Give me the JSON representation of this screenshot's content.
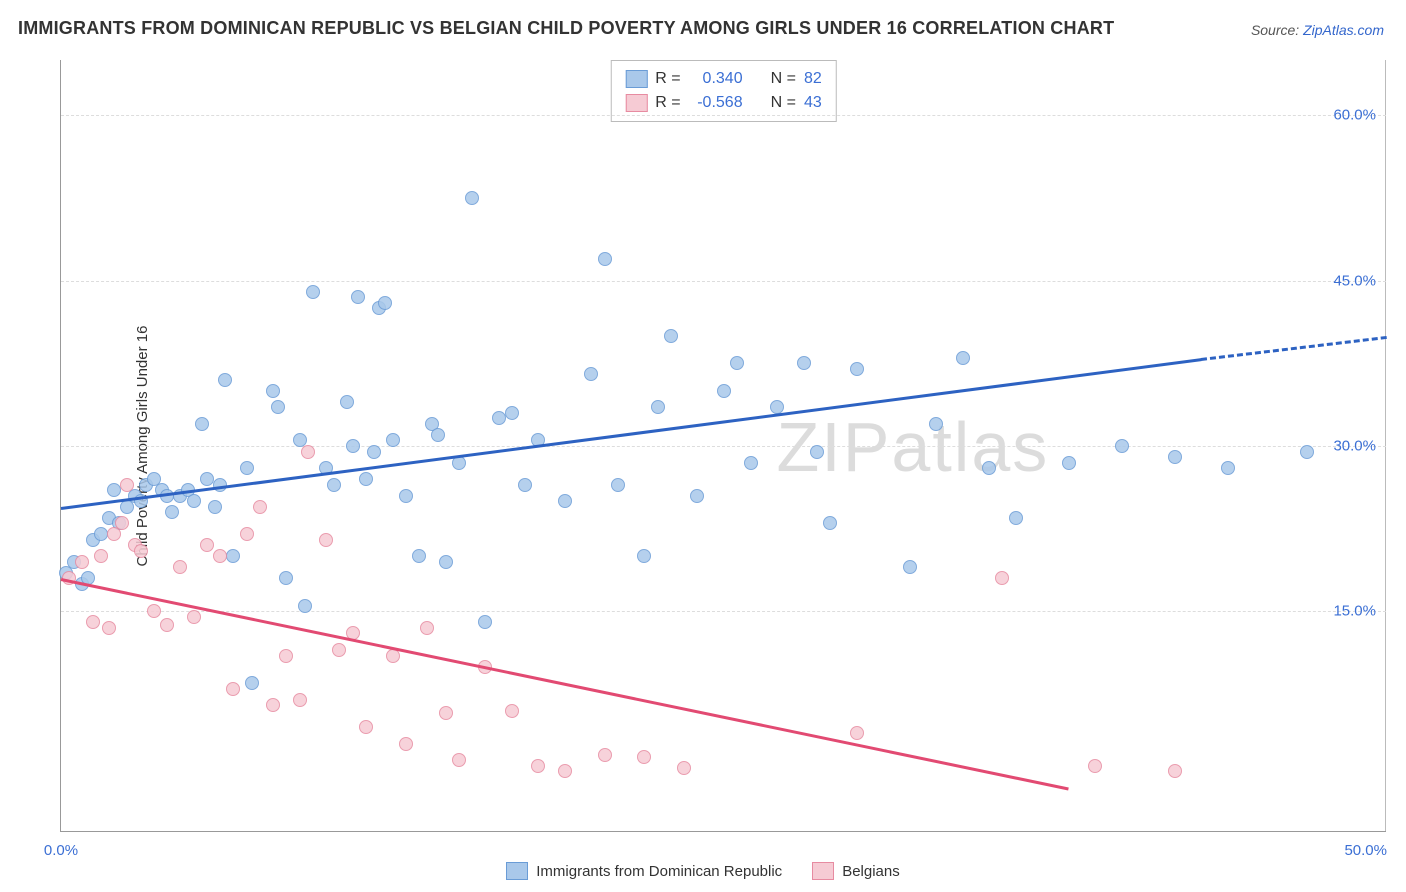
{
  "title": "IMMIGRANTS FROM DOMINICAN REPUBLIC VS BELGIAN CHILD POVERTY AMONG GIRLS UNDER 16 CORRELATION CHART",
  "source_prefix": "Source: ",
  "source_link": "ZipAtlas.com",
  "y_axis_label": "Child Poverty Among Girls Under 16",
  "watermark": "ZIPatlas",
  "chart": {
    "type": "scatter",
    "x_min": 0,
    "x_max": 50,
    "y_min": -5,
    "y_max": 65,
    "y_ticks": [
      15,
      30,
      45,
      60
    ],
    "y_tick_labels": [
      "15.0%",
      "30.0%",
      "45.0%",
      "60.0%"
    ],
    "x_ticks": [
      0,
      50
    ],
    "x_tick_labels": [
      "0.0%",
      "50.0%"
    ],
    "background_color": "#ffffff",
    "grid_color": "#dddddd",
    "series": [
      {
        "name": "Immigrants from Dominican Republic",
        "fill_color": "#a9c8ea",
        "stroke_color": "#6a9cd6",
        "r_value": "0.340",
        "n_value": "82",
        "trend": {
          "color": "#2d62c2",
          "x1": 0,
          "y1": 24.5,
          "x2": 43,
          "y2": 38.0,
          "dash_x2": 50,
          "dash_y2": 40.0
        },
        "points": [
          [
            0.2,
            18.5
          ],
          [
            0.5,
            19.5
          ],
          [
            0.8,
            17.5
          ],
          [
            1.0,
            18.0
          ],
          [
            1.2,
            21.5
          ],
          [
            1.5,
            22.0
          ],
          [
            1.8,
            23.5
          ],
          [
            2.0,
            26.0
          ],
          [
            2.2,
            23.0
          ],
          [
            2.5,
            24.5
          ],
          [
            2.8,
            25.5
          ],
          [
            3.0,
            25.0
          ],
          [
            3.2,
            26.5
          ],
          [
            3.5,
            27.0
          ],
          [
            3.8,
            26.0
          ],
          [
            4.0,
            25.5
          ],
          [
            4.2,
            24.0
          ],
          [
            4.5,
            25.5
          ],
          [
            4.8,
            26.0
          ],
          [
            5.0,
            25.0
          ],
          [
            5.3,
            32.0
          ],
          [
            5.5,
            27.0
          ],
          [
            5.8,
            24.5
          ],
          [
            6.0,
            26.5
          ],
          [
            6.2,
            36.0
          ],
          [
            6.5,
            20.0
          ],
          [
            7.0,
            28.0
          ],
          [
            7.2,
            8.5
          ],
          [
            8.0,
            35.0
          ],
          [
            8.2,
            33.5
          ],
          [
            8.5,
            18.0
          ],
          [
            9.0,
            30.5
          ],
          [
            9.2,
            15.5
          ],
          [
            9.5,
            44.0
          ],
          [
            10.0,
            28.0
          ],
          [
            10.3,
            26.5
          ],
          [
            10.8,
            34.0
          ],
          [
            11.0,
            30.0
          ],
          [
            11.2,
            43.5
          ],
          [
            11.5,
            27.0
          ],
          [
            11.8,
            29.5
          ],
          [
            12.0,
            42.5
          ],
          [
            12.2,
            43.0
          ],
          [
            12.5,
            30.5
          ],
          [
            13.0,
            25.5
          ],
          [
            13.5,
            20.0
          ],
          [
            14.0,
            32.0
          ],
          [
            14.2,
            31.0
          ],
          [
            14.5,
            19.5
          ],
          [
            15.0,
            28.5
          ],
          [
            15.5,
            52.5
          ],
          [
            16.0,
            14.0
          ],
          [
            16.5,
            32.5
          ],
          [
            17.0,
            33.0
          ],
          [
            17.5,
            26.5
          ],
          [
            18.0,
            30.5
          ],
          [
            19.0,
            25.0
          ],
          [
            20.0,
            36.5
          ],
          [
            20.5,
            47.0
          ],
          [
            21.0,
            26.5
          ],
          [
            22.0,
            20.0
          ],
          [
            22.5,
            33.5
          ],
          [
            23.0,
            40.0
          ],
          [
            24.0,
            25.5
          ],
          [
            25.0,
            35.0
          ],
          [
            25.5,
            37.5
          ],
          [
            26.0,
            28.5
          ],
          [
            27.0,
            33.5
          ],
          [
            28.0,
            37.5
          ],
          [
            28.5,
            29.5
          ],
          [
            29.0,
            23.0
          ],
          [
            30.0,
            37.0
          ],
          [
            32.0,
            19.0
          ],
          [
            33.0,
            32.0
          ],
          [
            34.0,
            38.0
          ],
          [
            35.0,
            28.0
          ],
          [
            36.0,
            23.5
          ],
          [
            38.0,
            28.5
          ],
          [
            40.0,
            30.0
          ],
          [
            42.0,
            29.0
          ],
          [
            44.0,
            28.0
          ],
          [
            47.0,
            29.5
          ]
        ]
      },
      {
        "name": "Belgians",
        "fill_color": "#f6cbd4",
        "stroke_color": "#e78ba1",
        "r_value": "-0.568",
        "n_value": "43",
        "trend": {
          "color": "#e24a72",
          "x1": 0,
          "y1": 18.0,
          "x2": 38,
          "y2": -1.0,
          "dash_x2": 0,
          "dash_y2": 0
        },
        "points": [
          [
            0.3,
            18.0
          ],
          [
            0.8,
            19.5
          ],
          [
            1.2,
            14.0
          ],
          [
            1.5,
            20.0
          ],
          [
            1.8,
            13.5
          ],
          [
            2.0,
            22.0
          ],
          [
            2.3,
            23.0
          ],
          [
            2.5,
            26.5
          ],
          [
            2.8,
            21.0
          ],
          [
            3.0,
            20.5
          ],
          [
            3.5,
            15.0
          ],
          [
            4.0,
            13.8
          ],
          [
            4.5,
            19.0
          ],
          [
            5.0,
            14.5
          ],
          [
            5.5,
            21.0
          ],
          [
            6.0,
            20.0
          ],
          [
            6.5,
            8.0
          ],
          [
            7.0,
            22.0
          ],
          [
            7.5,
            24.5
          ],
          [
            8.0,
            6.5
          ],
          [
            8.5,
            11.0
          ],
          [
            9.0,
            7.0
          ],
          [
            9.3,
            29.5
          ],
          [
            10.0,
            21.5
          ],
          [
            10.5,
            11.5
          ],
          [
            11.0,
            13.0
          ],
          [
            11.5,
            4.5
          ],
          [
            12.5,
            11.0
          ],
          [
            13.0,
            3.0
          ],
          [
            13.8,
            13.5
          ],
          [
            14.5,
            5.8
          ],
          [
            15.0,
            1.5
          ],
          [
            16.0,
            10.0
          ],
          [
            17.0,
            6.0
          ],
          [
            18.0,
            1.0
          ],
          [
            19.0,
            0.5
          ],
          [
            20.5,
            2.0
          ],
          [
            22.0,
            1.8
          ],
          [
            23.5,
            0.8
          ],
          [
            30.0,
            4.0
          ],
          [
            35.5,
            18.0
          ],
          [
            39.0,
            1.0
          ],
          [
            42.0,
            0.5
          ]
        ]
      }
    ]
  },
  "legend_top": {
    "r_label": "R =",
    "n_label": "N ="
  },
  "legend_bottom": {
    "series1": "Immigrants from Dominican Republic",
    "series2": "Belgians"
  }
}
